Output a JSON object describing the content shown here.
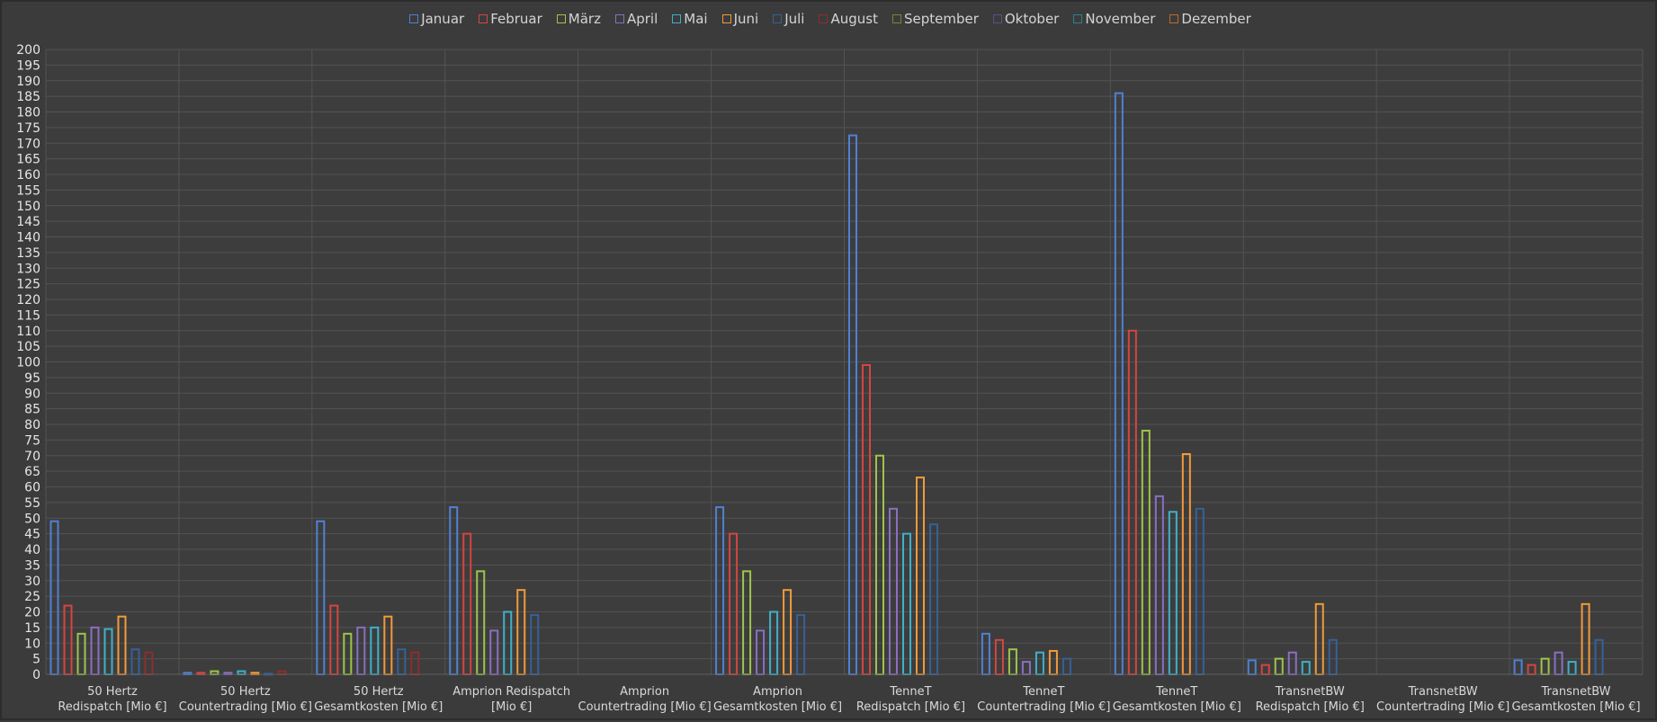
{
  "chart_data": {
    "type": "bar",
    "title": "",
    "xlabel": "",
    "ylabel": "",
    "ylim": [
      0,
      200
    ],
    "ytick_step": 5,
    "grid": true,
    "legend_position": "top",
    "categories": [
      [
        "50 Hertz",
        "Redispatch [Mio €]"
      ],
      [
        "50 Hertz",
        "Countertrading [Mio €]"
      ],
      [
        "50 Hertz",
        "Gesamtkosten [Mio €]"
      ],
      [
        "Amprion Redispatch",
        "[Mio €]"
      ],
      [
        "Amprion",
        "Countertrading [Mio €]"
      ],
      [
        "Amprion",
        "Gesamtkosten [Mio €]"
      ],
      [
        "TenneT",
        "Redispatch [Mio €]"
      ],
      [
        "TenneT",
        "Countertrading [Mio €]"
      ],
      [
        "TenneT",
        "Gesamtkosten [Mio €]"
      ],
      [
        "TransnetBW",
        "Redispatch [Mio €]"
      ],
      [
        "TransnetBW",
        "Countertrading [Mio €]"
      ],
      [
        "TransnetBW",
        "Gesamtkosten [Mio €]"
      ]
    ],
    "series": [
      {
        "name": "Januar",
        "color": "#4f81d4",
        "values": [
          49,
          0.5,
          49,
          53.5,
          0,
          53.5,
          172.5,
          13,
          186,
          4.5,
          0,
          4.5
        ]
      },
      {
        "name": "Februar",
        "color": "#d64541",
        "values": [
          22,
          0.5,
          22,
          45,
          0,
          45,
          99,
          11,
          110,
          3,
          0,
          3
        ]
      },
      {
        "name": "März",
        "color": "#9fc44b",
        "values": [
          13,
          1,
          13,
          33,
          0,
          33,
          70,
          8,
          78,
          5,
          0,
          5
        ]
      },
      {
        "name": "April",
        "color": "#8a6fc2",
        "values": [
          15,
          0.5,
          15,
          14,
          0,
          14,
          53,
          4,
          57,
          7,
          0,
          7
        ]
      },
      {
        "name": "Mai",
        "color": "#3fb1c9",
        "values": [
          14.5,
          1,
          15,
          20,
          0,
          20,
          45,
          7,
          52,
          4,
          0,
          4
        ]
      },
      {
        "name": "Juni",
        "color": "#f29a3a",
        "values": [
          18.5,
          0.5,
          18.5,
          27,
          0,
          27,
          63,
          7.5,
          70.5,
          22.5,
          0,
          22.5
        ]
      },
      {
        "name": "Juli",
        "color": "#35609a",
        "values": [
          8,
          0.2,
          8,
          19,
          0,
          19,
          48,
          5,
          53,
          11,
          0,
          11
        ]
      },
      {
        "name": "August",
        "color": "#8e2d2d",
        "values": [
          7,
          1,
          7,
          0,
          0,
          0,
          0,
          0,
          0,
          0,
          0,
          0
        ]
      },
      {
        "name": "September",
        "color": "#6f8a33",
        "values": [
          0,
          0,
          0,
          0,
          0,
          0,
          0,
          0,
          0,
          0,
          0,
          0
        ]
      },
      {
        "name": "Oktober",
        "color": "#5f4e86",
        "values": [
          0,
          0,
          0,
          0,
          0,
          0,
          0,
          0,
          0,
          0,
          0,
          0
        ]
      },
      {
        "name": "November",
        "color": "#2d7f92",
        "values": [
          0,
          0,
          0,
          0,
          0,
          0,
          0,
          0,
          0,
          0,
          0,
          0
        ]
      },
      {
        "name": "Dezember",
        "color": "#c06d22",
        "values": [
          0,
          0,
          0,
          0,
          0,
          0,
          0,
          0,
          0,
          0,
          0,
          0
        ]
      }
    ]
  }
}
